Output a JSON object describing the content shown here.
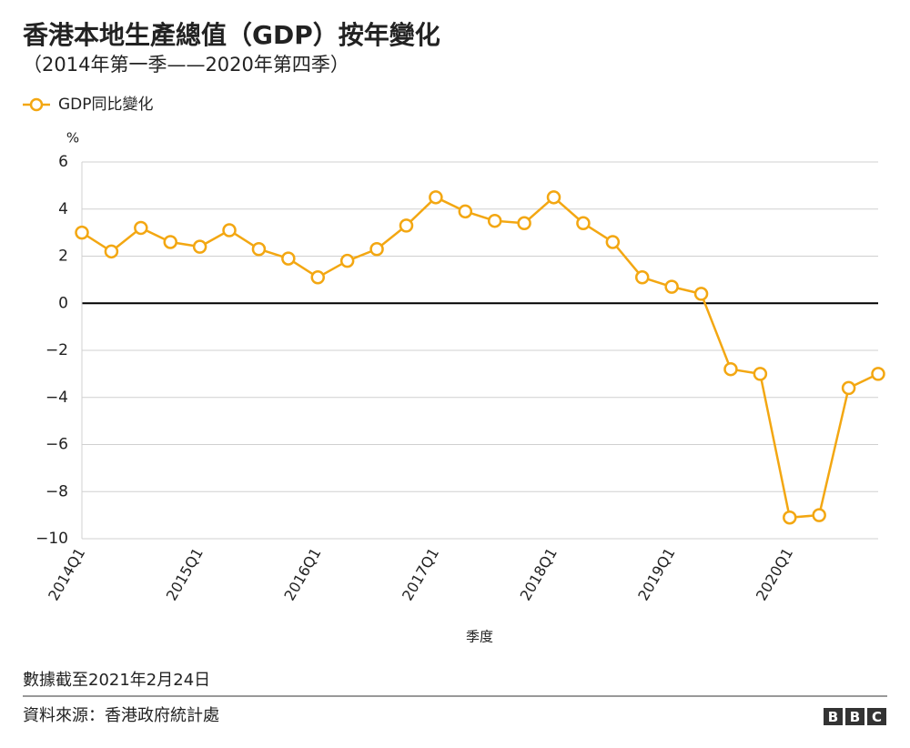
{
  "chart_data": {
    "type": "line",
    "title": "香港本地生產總值（GDP）按年變化",
    "subtitle": "（2014年第一季——2020年第四季）",
    "y_unit": "%",
    "x_label": "季度",
    "categories": [
      "2014Q1",
      null,
      null,
      null,
      "2015Q1",
      null,
      null,
      null,
      "2016Q1",
      null,
      null,
      null,
      "2017Q1",
      null,
      null,
      null,
      "2018Q1",
      null,
      null,
      null,
      "2019Q1",
      null,
      null,
      null,
      "2020Q1",
      null,
      null,
      null
    ],
    "series": [
      {
        "name": "GDP同比變化",
        "color": "#f3a712",
        "values": [
          3.0,
          2.2,
          3.2,
          2.6,
          2.4,
          3.1,
          2.3,
          1.9,
          1.1,
          1.8,
          2.3,
          3.3,
          4.5,
          3.9,
          3.5,
          3.4,
          4.5,
          3.4,
          2.6,
          1.1,
          0.7,
          0.4,
          -2.8,
          -3.0,
          -9.1,
          -9.0,
          -3.6,
          -3.0
        ]
      }
    ],
    "ylim": [
      -10,
      6
    ],
    "yticks": [
      {
        "value": -10,
        "label": "−10"
      },
      {
        "value": -8,
        "label": "−8"
      },
      {
        "value": -6,
        "label": "−6"
      },
      {
        "value": -4,
        "label": "−4"
      },
      {
        "value": -2,
        "label": "−2"
      },
      0,
      2,
      4,
      6
    ],
    "grid": true,
    "legend": "top-left",
    "footnote": "數據截至2021年2月24日",
    "source": "資料來源：香港政府統計處",
    "logo": [
      "B",
      "B",
      "C"
    ]
  }
}
